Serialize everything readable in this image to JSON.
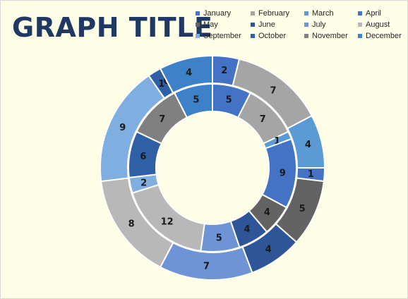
{
  "chart_data": {
    "type": "donut",
    "title": "GRAPH TITLE",
    "legend_position": "top-right",
    "categories": [
      "January",
      "February",
      "March",
      "April",
      "May",
      "June",
      "July",
      "August",
      "September",
      "October",
      "November",
      "December"
    ],
    "colors": [
      "#4472c4",
      "#a5a5a5",
      "#5b9bd5",
      "#4472c4",
      "#636363",
      "#2e5597",
      "#6f94d6",
      "#b8b8b8",
      "#7faee0",
      "#2f5fa4",
      "#808080",
      "#3d82c9"
    ],
    "series": [
      {
        "ring": "outer",
        "values": [
          2,
          7,
          4,
          1,
          5,
          4,
          7,
          8,
          9,
          1,
          0,
          4
        ]
      },
      {
        "ring": "inner",
        "values": [
          5,
          7,
          1,
          9,
          4,
          4,
          5,
          12,
          2,
          6,
          7,
          5
        ]
      }
    ]
  }
}
